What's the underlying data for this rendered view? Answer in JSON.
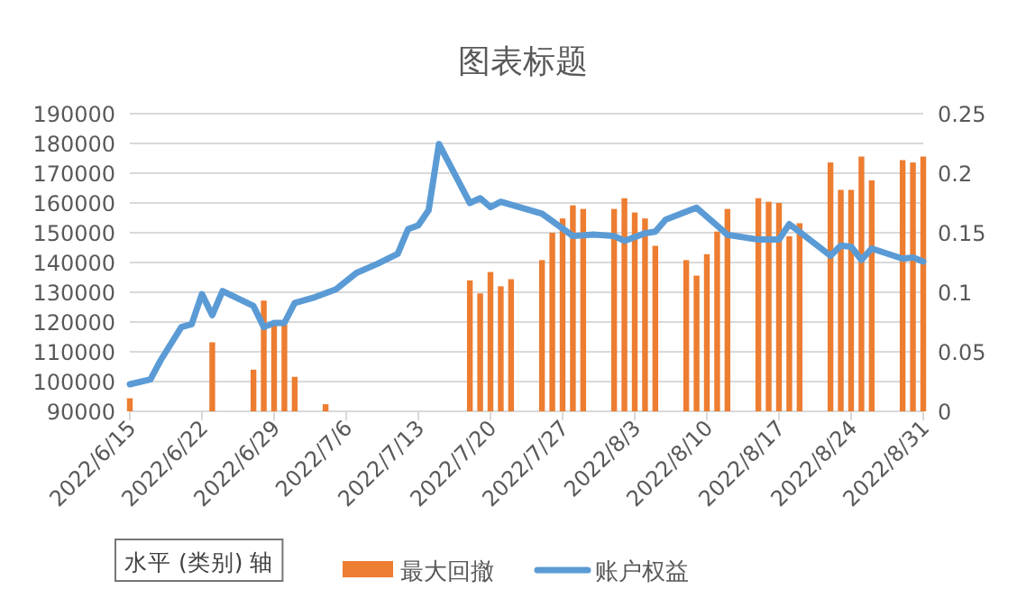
{
  "chart_data": {
    "type": "bar",
    "title": "图表标题",
    "xlim": [
      "2022-06-15",
      "2022-08-31"
    ],
    "xticks": [
      {
        "value": "2022-06-15",
        "label": "2022/6/15"
      },
      {
        "value": "2022-06-22",
        "label": "2022/6/22"
      },
      {
        "value": "2022-06-29",
        "label": "2022/6/29"
      },
      {
        "value": "2022-07-06",
        "label": "2022/7/6"
      },
      {
        "value": "2022-07-13",
        "label": "2022/7/13"
      },
      {
        "value": "2022-07-20",
        "label": "2022/7/20"
      },
      {
        "value": "2022-07-27",
        "label": "2022/7/27"
      },
      {
        "value": "2022-08-03",
        "label": "2022/8/3"
      },
      {
        "value": "2022-08-10",
        "label": "2022/8/10"
      },
      {
        "value": "2022-08-17",
        "label": "2022/8/17"
      },
      {
        "value": "2022-08-24",
        "label": "2022/8/24"
      },
      {
        "value": "2022-08-31",
        "label": "2022/8/31"
      }
    ],
    "ylim": [
      90000,
      190000
    ],
    "yticks": [
      90000,
      100000,
      110000,
      120000,
      130000,
      140000,
      150000,
      160000,
      170000,
      180000,
      190000
    ],
    "y2lim": [
      0,
      0.25
    ],
    "y2ticks": [
      0,
      0.05,
      0.1,
      0.15,
      0.2,
      0.25
    ],
    "grid": "y",
    "legend": "bottom",
    "marker": "none",
    "line_style": "solid",
    "annotations": [
      "水平 (类别) 轴"
    ],
    "series": [
      {
        "name": "最大回撤",
        "axis": "y2",
        "color": "#ed7d31",
        "x": [
          "2022-06-15",
          "2022-06-23",
          "2022-06-27",
          "2022-06-28",
          "2022-06-29",
          "2022-06-30",
          "2022-07-01",
          "2022-07-04",
          "2022-07-18",
          "2022-07-19",
          "2022-07-20",
          "2022-07-21",
          "2022-07-22",
          "2022-07-25",
          "2022-07-26",
          "2022-07-27",
          "2022-07-28",
          "2022-07-29",
          "2022-08-01",
          "2022-08-02",
          "2022-08-03",
          "2022-08-04",
          "2022-08-05",
          "2022-08-08",
          "2022-08-09",
          "2022-08-10",
          "2022-08-11",
          "2022-08-12",
          "2022-08-15",
          "2022-08-16",
          "2022-08-17",
          "2022-08-18",
          "2022-08-19",
          "2022-08-22",
          "2022-08-23",
          "2022-08-24",
          "2022-08-25",
          "2022-08-26",
          "2022-08-29",
          "2022-08-30",
          "2022-08-31"
        ],
        "values": [
          0.011,
          0.058,
          0.035,
          0.093,
          0.073,
          0.073,
          0.029,
          0.006,
          0.11,
          0.099,
          0.117,
          0.105,
          0.111,
          0.127,
          0.15,
          0.162,
          0.173,
          0.17,
          0.17,
          0.179,
          0.167,
          0.162,
          0.139,
          0.127,
          0.114,
          0.132,
          0.151,
          0.17,
          0.179,
          0.176,
          0.175,
          0.147,
          0.158,
          0.209,
          0.186,
          0.186,
          0.214,
          0.194,
          0.211,
          0.209,
          0.214
        ]
      },
      {
        "name": "账户权益",
        "type": "line",
        "axis": "y",
        "color": "#5b9bd5",
        "x": [
          "2022-06-15",
          "2022-06-17",
          "2022-06-18",
          "2022-06-20",
          "2022-06-21",
          "2022-06-22",
          "2022-06-23",
          "2022-06-24",
          "2022-06-27",
          "2022-06-28",
          "2022-06-29",
          "2022-06-30",
          "2022-07-01",
          "2022-07-03",
          "2022-07-05",
          "2022-07-07",
          "2022-07-09",
          "2022-07-11",
          "2022-07-12",
          "2022-07-13",
          "2022-07-14",
          "2022-07-15",
          "2022-07-18",
          "2022-07-19",
          "2022-07-20",
          "2022-07-21",
          "2022-07-25",
          "2022-07-27",
          "2022-07-28",
          "2022-07-30",
          "2022-08-01",
          "2022-08-02",
          "2022-08-04",
          "2022-08-05",
          "2022-08-06",
          "2022-08-09",
          "2022-08-11",
          "2022-08-12",
          "2022-08-15",
          "2022-08-17",
          "2022-08-18",
          "2022-08-19",
          "2022-08-22",
          "2022-08-23",
          "2022-08-24",
          "2022-08-25",
          "2022-08-26",
          "2022-08-29",
          "2022-08-30",
          "2022-08-31"
        ],
        "values": [
          99100,
          100700,
          107200,
          118300,
          119300,
          129400,
          122300,
          130400,
          125400,
          118300,
          119700,
          119700,
          126400,
          128400,
          131000,
          136500,
          139500,
          142900,
          151200,
          152500,
          157600,
          179800,
          160000,
          161600,
          158600,
          160400,
          156400,
          151400,
          148900,
          149400,
          148900,
          147300,
          149800,
          150400,
          154400,
          158400,
          152400,
          149300,
          147700,
          147700,
          152900,
          150300,
          142300,
          145700,
          145300,
          140900,
          144700,
          141300,
          141700,
          140300
        ]
      }
    ]
  }
}
